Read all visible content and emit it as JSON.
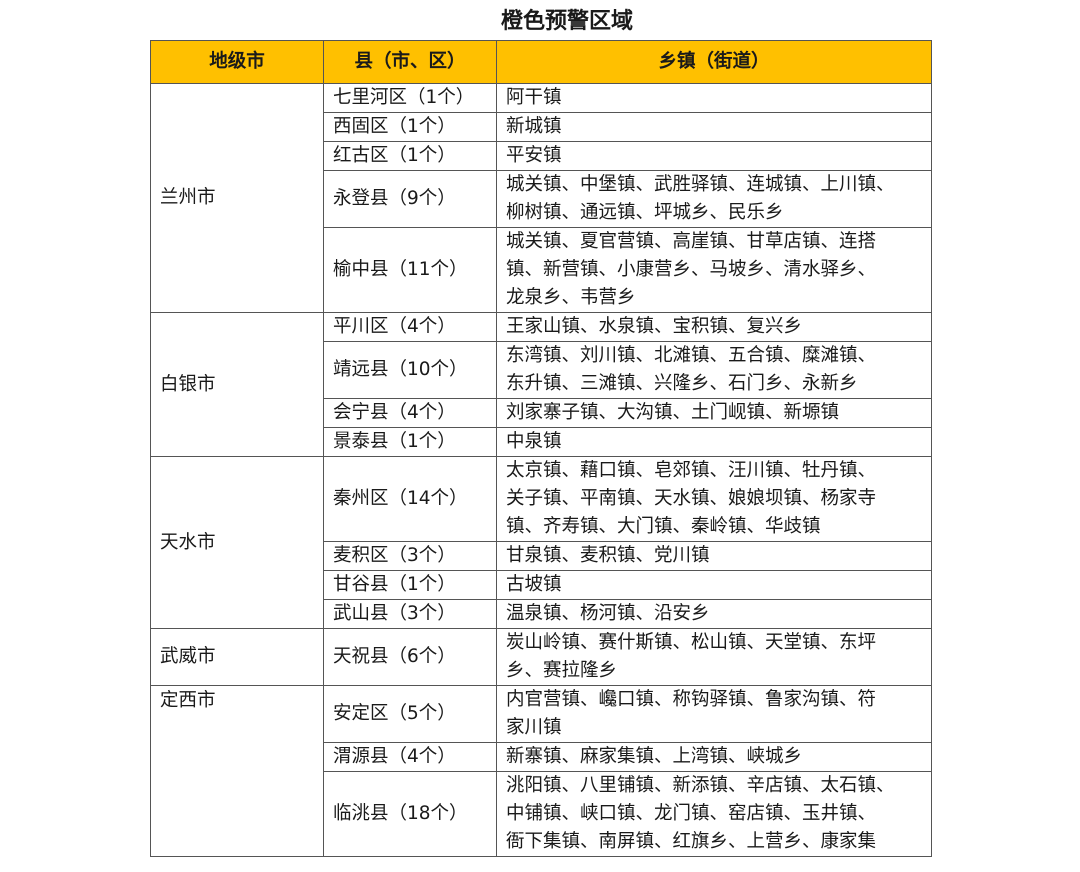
{
  "title": "橙色预警区域",
  "header_color": "#FFC000",
  "columns": [
    "地级市",
    "县（市、区）",
    "乡镇（街道）"
  ],
  "cities": [
    {
      "name": "兰州市",
      "align": "middle",
      "counties": [
        {
          "name": "七里河区（1个）",
          "towns": [
            "阿干镇"
          ]
        },
        {
          "name": "西固区（1个）",
          "towns": [
            "新城镇"
          ]
        },
        {
          "name": "红古区（1个）",
          "towns": [
            "平安镇"
          ]
        },
        {
          "name": "永登县（9个）",
          "towns": [
            "城关镇、中堡镇、武胜驿镇、连城镇、上川镇、",
            "柳树镇、通远镇、坪城乡、民乐乡"
          ]
        },
        {
          "name": "榆中县（11个）",
          "towns": [
            "城关镇、夏官营镇、高崖镇、甘草店镇、连搭",
            "镇、新营镇、小康营乡、马坡乡、清水驿乡、",
            "龙泉乡、韦营乡"
          ]
        }
      ]
    },
    {
      "name": "白银市",
      "align": "middle",
      "counties": [
        {
          "name": "平川区（4个）",
          "towns": [
            "王家山镇、水泉镇、宝积镇、复兴乡"
          ]
        },
        {
          "name": "靖远县（10个）",
          "towns": [
            "东湾镇、刘川镇、北滩镇、五合镇、糜滩镇、",
            "东升镇、三滩镇、兴隆乡、石门乡、永新乡"
          ]
        },
        {
          "name": "会宁县（4个）",
          "towns": [
            "刘家寨子镇、大沟镇、土门岘镇、新塬镇"
          ]
        },
        {
          "name": "景泰县（1个）",
          "towns": [
            "中泉镇"
          ]
        }
      ]
    },
    {
      "name": "天水市",
      "align": "middle",
      "counties": [
        {
          "name": "秦州区（14个）",
          "towns": [
            "太京镇、藉口镇、皂郊镇、汪川镇、牡丹镇、",
            "关子镇、平南镇、天水镇、娘娘坝镇、杨家寺",
            "镇、齐寿镇、大门镇、秦岭镇、华歧镇"
          ]
        },
        {
          "name": "麦积区（3个）",
          "towns": [
            "甘泉镇、麦积镇、党川镇"
          ]
        },
        {
          "name": "甘谷县（1个）",
          "towns": [
            "古坡镇"
          ]
        },
        {
          "name": "武山县（3个）",
          "towns": [
            "温泉镇、杨河镇、沿安乡"
          ]
        }
      ]
    },
    {
      "name": "武威市",
      "align": "middle",
      "counties": [
        {
          "name": "天祝县（6个）",
          "towns": [
            "炭山岭镇、赛什斯镇、松山镇、天堂镇、东坪",
            "乡、赛拉隆乡"
          ]
        }
      ]
    },
    {
      "name": "定西市",
      "align": "top",
      "counties": [
        {
          "name": "安定区（5个）",
          "towns": [
            "内官营镇、巉口镇、称钩驿镇、鲁家沟镇、符",
            "家川镇"
          ]
        },
        {
          "name": "渭源县（4个）",
          "towns": [
            "新寨镇、麻家集镇、上湾镇、峡城乡"
          ]
        },
        {
          "name": "临洮县（18个）",
          "towns": [
            "洮阳镇、八里铺镇、新添镇、辛店镇、太石镇、",
            "中铺镇、峡口镇、龙门镇、窑店镇、玉井镇、",
            "衙下集镇、南屏镇、红旗乡、上营乡、康家集"
          ]
        }
      ]
    }
  ]
}
